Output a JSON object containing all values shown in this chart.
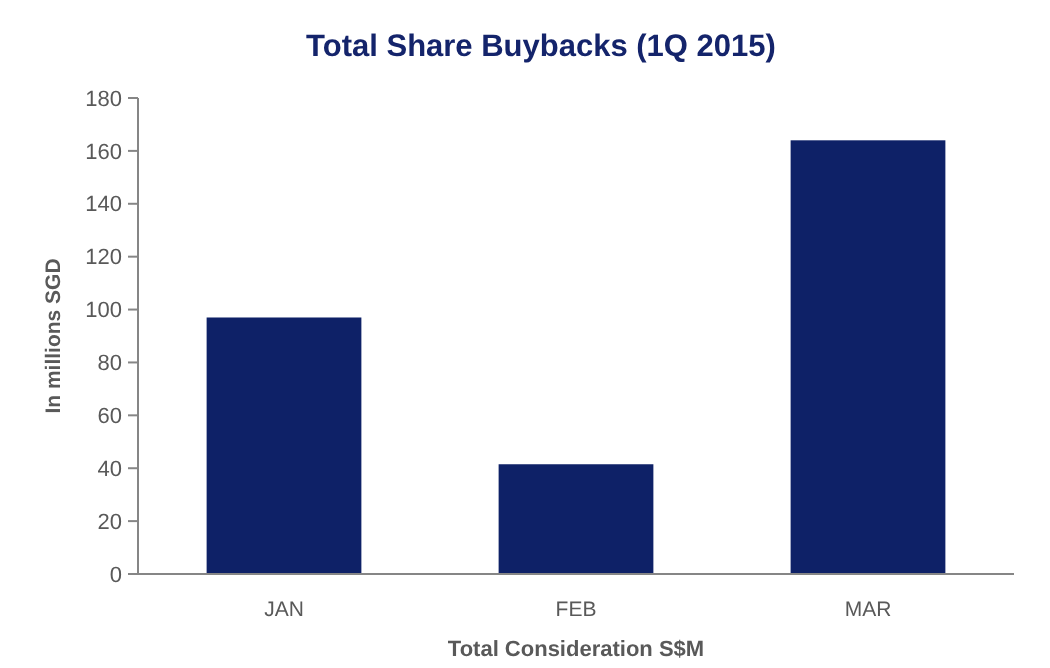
{
  "chart_data": {
    "type": "bar",
    "title": "Total Share Buybacks (1Q 2015)",
    "xlabel": "Total Consideration S$M",
    "ylabel": "In millions SGD",
    "categories": [
      "JAN",
      "FEB",
      "MAR"
    ],
    "values": [
      97,
      41.5,
      164
    ],
    "color": "#0e2167",
    "ylim": [
      0,
      180
    ],
    "yticks": [
      0,
      20,
      40,
      60,
      80,
      100,
      120,
      140,
      160,
      180
    ],
    "grid": false
  }
}
